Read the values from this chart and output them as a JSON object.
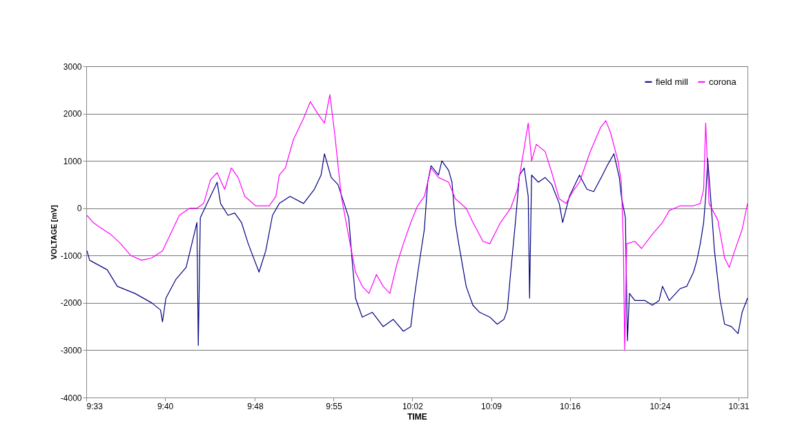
{
  "chart_data": {
    "type": "line",
    "xlabel": "TIME",
    "ylabel": "VOLTAGE [mV]",
    "xlim": [
      9.55,
      10.53
    ],
    "ylim": [
      -4000,
      3000
    ],
    "xticks": [
      {
        "value": 9.55,
        "label": "9:33"
      },
      {
        "value": 9.6667,
        "label": "9:40"
      },
      {
        "value": 9.8,
        "label": "9:48"
      },
      {
        "value": 9.9167,
        "label": "9:55"
      },
      {
        "value": 10.0333,
        "label": "10:02"
      },
      {
        "value": 10.15,
        "label": "10:09"
      },
      {
        "value": 10.2667,
        "label": "10:16"
      },
      {
        "value": 10.4,
        "label": "10:24"
      },
      {
        "value": 10.5167,
        "label": "10:31"
      }
    ],
    "yticks": [
      -4000,
      -3000,
      -2000,
      -1000,
      0,
      1000,
      2000,
      3000
    ],
    "grid": "y",
    "legend": "top right",
    "marker": "none",
    "line_style": "solid",
    "series": [
      {
        "name": "field mill",
        "color": "#000080",
        "x": [
          9.551,
          9.555,
          9.581,
          9.596,
          9.622,
          9.647,
          9.66,
          9.663,
          9.668,
          9.683,
          9.698,
          9.709,
          9.714,
          9.716,
          9.719,
          9.729,
          9.744,
          9.749,
          9.76,
          9.77,
          9.78,
          9.79,
          9.806,
          9.816,
          9.826,
          9.836,
          9.852,
          9.872,
          9.888,
          9.898,
          9.903,
          9.913,
          9.923,
          9.939,
          9.944,
          9.949,
          9.959,
          9.974,
          9.99,
          10.005,
          10.02,
          10.031,
          10.036,
          10.043,
          10.051,
          10.056,
          10.061,
          10.072,
          10.077,
          10.087,
          10.092,
          10.097,
          10.102,
          10.113,
          10.123,
          10.133,
          10.148,
          10.159,
          10.169,
          10.174,
          10.179,
          10.186,
          10.192,
          10.199,
          10.205,
          10.207,
          10.21,
          10.22,
          10.23,
          10.24,
          10.251,
          10.256,
          10.266,
          10.281,
          10.292,
          10.302,
          10.315,
          10.322,
          10.332,
          10.34,
          10.343,
          10.349,
          10.352,
          10.355,
          10.363,
          10.378,
          10.389,
          10.399,
          10.404,
          10.414,
          10.43,
          10.44,
          10.45,
          10.455,
          10.46,
          10.465,
          10.468,
          10.471,
          10.476,
          10.481,
          10.489,
          10.496,
          10.506,
          10.516,
          10.522,
          10.53
        ],
        "values": [
          -900,
          -1100,
          -1300,
          -1650,
          -1800,
          -2000,
          -2150,
          -2400,
          -1900,
          -1500,
          -1250,
          -600,
          -300,
          -2900,
          -200,
          100,
          550,
          100,
          -150,
          -100,
          -300,
          -750,
          -1350,
          -900,
          -150,
          100,
          250,
          100,
          400,
          700,
          1150,
          650,
          500,
          -200,
          -1100,
          -1900,
          -2300,
          -2200,
          -2500,
          -2350,
          -2600,
          -2500,
          -1900,
          -1200,
          -450,
          550,
          900,
          700,
          1000,
          800,
          550,
          -300,
          -750,
          -1650,
          -2050,
          -2200,
          -2300,
          -2450,
          -2350,
          -2150,
          -1350,
          -300,
          700,
          850,
          250,
          -1900,
          700,
          550,
          650,
          500,
          100,
          -300,
          250,
          700,
          400,
          350,
          700,
          900,
          1150,
          650,
          250,
          -200,
          -2800,
          -1800,
          -1950,
          -1950,
          -2050,
          -1950,
          -1650,
          -1950,
          -1700,
          -1650,
          -1350,
          -1100,
          -750,
          -300,
          250,
          1050,
          100,
          -900,
          -1900,
          -2450,
          -2500,
          -2650,
          -2200,
          -1900
        ]
      },
      {
        "name": "corona",
        "color": "#ff00ff",
        "x": [
          9.551,
          9.56,
          9.57,
          9.586,
          9.601,
          9.616,
          9.632,
          9.647,
          9.663,
          9.678,
          9.688,
          9.703,
          9.714,
          9.724,
          9.734,
          9.744,
          9.755,
          9.765,
          9.775,
          9.785,
          9.801,
          9.821,
          9.831,
          9.836,
          9.845,
          9.857,
          9.872,
          9.882,
          9.893,
          9.903,
          9.911,
          9.918,
          9.928,
          9.939,
          9.949,
          9.959,
          9.969,
          9.98,
          9.99,
          10.0,
          10.01,
          10.02,
          10.031,
          10.041,
          10.051,
          10.061,
          10.072,
          10.087,
          10.097,
          10.113,
          10.123,
          10.138,
          10.148,
          10.164,
          10.179,
          10.189,
          10.205,
          10.21,
          10.217,
          10.23,
          10.24,
          10.251,
          10.261,
          10.271,
          10.281,
          10.297,
          10.312,
          10.32,
          10.327,
          10.338,
          10.343,
          10.346,
          10.348,
          10.351,
          10.363,
          10.373,
          10.389,
          10.404,
          10.414,
          10.43,
          10.45,
          10.46,
          10.465,
          10.468,
          10.473,
          10.486,
          10.496,
          10.503,
          10.511,
          10.522,
          10.53
        ],
        "values": [
          -150,
          -300,
          -400,
          -550,
          -750,
          -1000,
          -1100,
          -1050,
          -900,
          -450,
          -150,
          0,
          0,
          100,
          600,
          750,
          400,
          850,
          650,
          250,
          50,
          50,
          250,
          700,
          850,
          1450,
          1900,
          2250,
          2000,
          1800,
          2400,
          1600,
          250,
          -600,
          -1350,
          -1650,
          -1800,
          -1400,
          -1650,
          -1800,
          -1200,
          -750,
          -300,
          50,
          250,
          850,
          650,
          550,
          200,
          0,
          -300,
          -700,
          -750,
          -300,
          0,
          400,
          1800,
          1000,
          1350,
          1200,
          750,
          200,
          100,
          350,
          550,
          1200,
          1700,
          1850,
          1600,
          1000,
          550,
          -750,
          -3000,
          -750,
          -700,
          -850,
          -550,
          -300,
          -50,
          50,
          50,
          100,
          400,
          1800,
          100,
          -250,
          -1050,
          -1250,
          -900,
          -450,
          100
        ]
      }
    ]
  }
}
